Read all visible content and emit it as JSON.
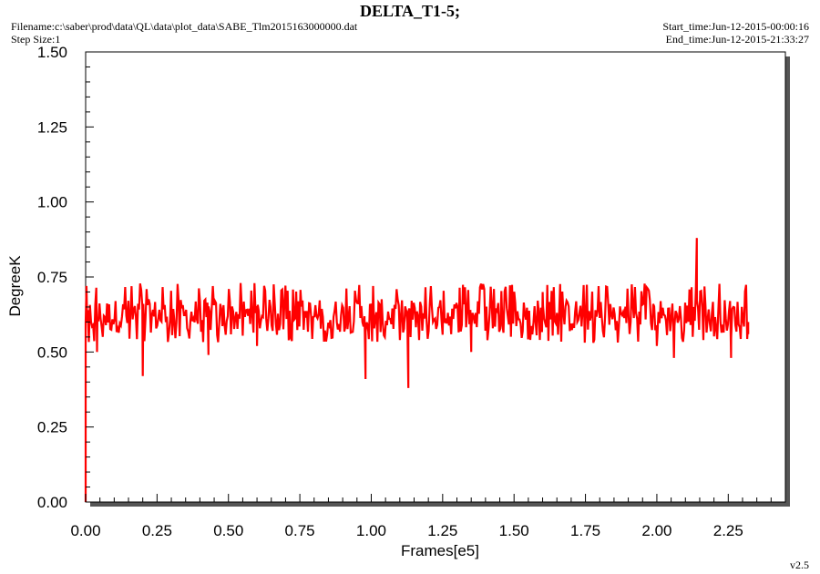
{
  "header": {
    "title": "DELTA_T1-5;",
    "filename": "Filename:c:\\saber\\prod\\data\\QL\\data\\plot_data\\SABE_Tlm2015163000000.dat",
    "step_size": "Step Size:1",
    "start_time": "Start_time:Jun-12-2015-00:00:16",
    "end_time": "End_time:Jun-12-2015-21:33:27"
  },
  "footer": {
    "version": "v2.5"
  },
  "colors": {
    "series": "#ff0000",
    "background": "#ffffff",
    "shadow": "#555555"
  },
  "chart_data": {
    "type": "line",
    "title": "DELTA_T1-5;",
    "xlabel": "Frames[e5]",
    "ylabel": "DegreeK",
    "xlim": [
      0.0,
      2.45
    ],
    "ylim": [
      0.0,
      1.5
    ],
    "xticks": [
      "0.00",
      "0.25",
      "0.50",
      "0.75",
      "1.00",
      "1.25",
      "1.50",
      "1.75",
      "2.00",
      "2.25"
    ],
    "yticks": [
      "0.00",
      "0.25",
      "0.50",
      "0.75",
      "1.00",
      "1.25",
      "1.50"
    ],
    "grid": false,
    "series": [
      {
        "color": "#ff0000",
        "band": {
          "x_start": 0.0,
          "x_end": 2.32,
          "y_low": 0.56,
          "y_high": 0.7,
          "center": 0.62
        },
        "x": [
          0.0,
          0.003,
          0.005,
          0.04,
          0.2,
          0.43,
          0.6,
          0.98,
          1.13,
          1.35,
          1.6,
          2.0,
          2.06,
          2.13,
          2.14,
          2.26,
          2.32
        ],
        "y": [
          0.0,
          0.72,
          0.6,
          0.5,
          0.42,
          0.49,
          0.52,
          0.41,
          0.38,
          0.5,
          0.7,
          0.52,
          0.48,
          0.65,
          0.88,
          0.48,
          0.6
        ]
      }
    ]
  }
}
